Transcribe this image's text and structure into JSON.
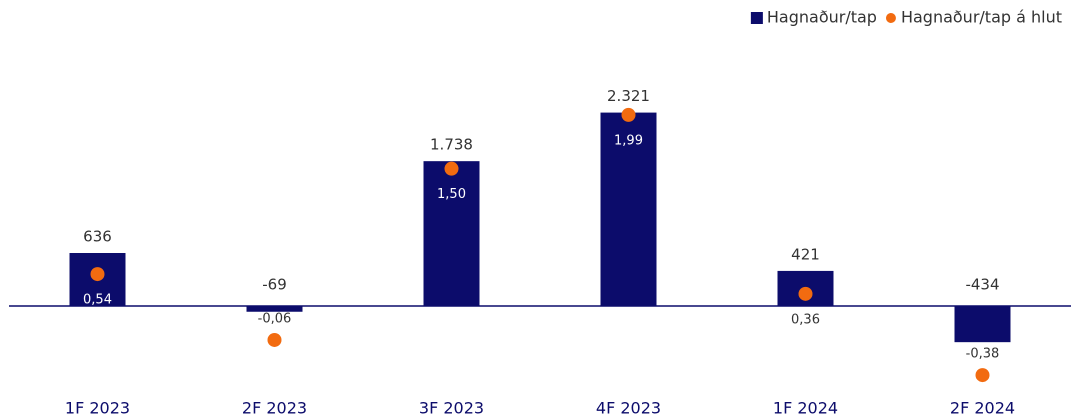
{
  "chart_data": {
    "type": "bar",
    "categories": [
      "1F 2023",
      "2F 2023",
      "3F 2023",
      "4F 2023",
      "1F 2024",
      "2F 2024"
    ],
    "series": [
      {
        "name": "Hagnaður/tap",
        "color": "#0c0c6b",
        "values": [
          636,
          -69,
          1738,
          2321,
          421,
          -434
        ],
        "value_labels": [
          "636",
          "-69",
          "1.738",
          "2.321",
          "421",
          "-434"
        ]
      },
      {
        "name": "Hagnaður/tap á hlut",
        "color": "#f26b10",
        "axis": "y2",
        "type": "scatter",
        "values": [
          0.54,
          -0.06,
          1.5,
          1.99,
          0.36,
          -0.38
        ],
        "value_labels": [
          "0,54",
          "-0,06",
          "1,50",
          "1,99",
          "0,36",
          "-0,38"
        ]
      }
    ],
    "ylim": [
      -1128,
      3192
    ],
    "y2lim": [
      -0.607,
      2.672
    ],
    "legend": "top-right"
  }
}
